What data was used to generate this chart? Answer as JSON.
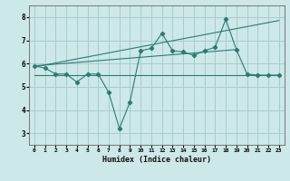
{
  "xlabel": "Humidex (Indice chaleur)",
  "background_color": "#cce8e8",
  "grid_color": "#aacccc",
  "line_color": "#2d7a72",
  "xlim": [
    -0.5,
    23.5
  ],
  "ylim": [
    2.5,
    8.5
  ],
  "xticks": [
    0,
    1,
    2,
    3,
    4,
    5,
    6,
    7,
    8,
    9,
    10,
    11,
    12,
    13,
    14,
    15,
    16,
    17,
    18,
    19,
    20,
    21,
    22,
    23
  ],
  "yticks": [
    3,
    4,
    5,
    6,
    7,
    8
  ],
  "series1_x": [
    0,
    1,
    2,
    3,
    4,
    5,
    6,
    7,
    8,
    9,
    10,
    11,
    12,
    13,
    14,
    15,
    16,
    17,
    18,
    19,
    20,
    21,
    22,
    23
  ],
  "series1_y": [
    5.9,
    5.8,
    5.55,
    5.55,
    5.2,
    5.55,
    5.55,
    4.75,
    3.2,
    4.35,
    6.55,
    6.65,
    7.3,
    6.55,
    6.5,
    6.35,
    6.55,
    6.7,
    7.9,
    6.6,
    5.55,
    5.5,
    5.5,
    5.5
  ],
  "flat_line_x": [
    0,
    23
  ],
  "flat_line_y": [
    5.5,
    5.5
  ],
  "trend1_x": [
    0,
    19
  ],
  "trend1_y": [
    5.9,
    6.6
  ],
  "trend2_x": [
    0,
    23
  ],
  "trend2_y": [
    5.85,
    7.85
  ]
}
